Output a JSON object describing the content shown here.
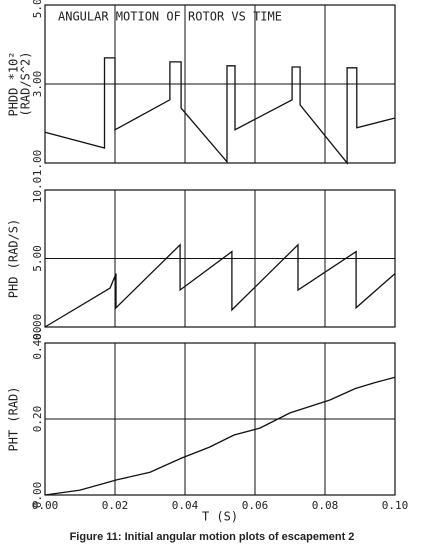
{
  "chart_data": [
    {
      "type": "line",
      "title": "ANGULAR MOTION OF ROTOR VS TIME",
      "ylabel": [
        "PHDD *10²",
        "(RAD/S^2)"
      ],
      "color": "#111",
      "x": [
        0,
        0.017,
        0.017,
        0.02,
        0.02,
        0.0357,
        0.0357,
        0.0389,
        0.0389,
        0.052,
        0.052,
        0.0543,
        0.0543,
        0.0706,
        0.0706,
        0.0729,
        0.0729,
        0.0863,
        0.0863,
        0.0891,
        0.0891,
        0.1
      ],
      "values": [
        1.78,
        1.38,
        3.66,
        3.66,
        1.84,
        2.6,
        3.56,
        3.56,
        2.39,
        1.03,
        3.46,
        3.46,
        1.84,
        2.6,
        3.43,
        3.43,
        2.47,
        1.0,
        3.41,
        3.41,
        1.89,
        2.14
      ],
      "xlim": [
        0,
        0.1
      ],
      "xticks": [
        0,
        0.02,
        0.04,
        0.06,
        0.08,
        0.1
      ],
      "show_xtick_labels": false,
      "ylim": [
        1,
        5
      ],
      "yticks": [
        {
          "value": 1,
          "label": "1.00"
        },
        {
          "value": 3,
          "label": "3.00"
        },
        {
          "value": 5,
          "label": "5.00"
        }
      ],
      "grid": true
    },
    {
      "type": "line",
      "ylabel": [
        "PHD (RAD/S)"
      ],
      "color": "#111",
      "x": [
        0,
        0.0186,
        0.0203,
        0.0203,
        0.0386,
        0.0386,
        0.0534,
        0.0534,
        0.0723,
        0.0723,
        0.0889,
        0.0889,
        0.1
      ],
      "values": [
        0,
        2.85,
        3.9,
        1.4,
        6.0,
        2.7,
        5.5,
        1.25,
        6.0,
        2.7,
        5.5,
        1.4,
        3.9
      ],
      "xlim": [
        0,
        0.1
      ],
      "xticks": [
        0,
        0.02,
        0.04,
        0.06,
        0.08,
        0.1
      ],
      "show_xtick_labels": false,
      "ylim": [
        0,
        10
      ],
      "yticks": [
        {
          "value": 0,
          "label": "0.00"
        },
        {
          "value": 5,
          "label": "5.00"
        },
        {
          "value": 10,
          "label": "10.0"
        }
      ],
      "grid": true
    },
    {
      "type": "line",
      "ylabel": [
        "PHT (RAD)"
      ],
      "xlabel": "T (S)",
      "color": "#111",
      "x": [
        0,
        0.01,
        0.0206,
        0.03,
        0.039,
        0.047,
        0.054,
        0.0614,
        0.07,
        0.0814,
        0.0886,
        0.094,
        0.1
      ],
      "values": [
        0,
        0.013,
        0.04,
        0.06,
        0.097,
        0.126,
        0.158,
        0.176,
        0.216,
        0.25,
        0.28,
        0.295,
        0.31
      ],
      "xlim": [
        0,
        0.1
      ],
      "xticks": [
        {
          "value": 0,
          "label": "0.00"
        },
        {
          "value": 0.02,
          "label": "0.02"
        },
        {
          "value": 0.04,
          "label": "0.04"
        },
        {
          "value": 0.06,
          "label": "0.06"
        },
        {
          "value": 0.08,
          "label": "0.08"
        },
        {
          "value": 0.1,
          "label": "0.10"
        }
      ],
      "show_xtick_labels": true,
      "ylim": [
        0,
        0.4
      ],
      "yticks": [
        {
          "value": 0,
          "label": "0.00"
        },
        {
          "value": 0.2,
          "label": "0.20"
        },
        {
          "value": 0.4,
          "label": "0.400"
        }
      ],
      "grid": true
    }
  ],
  "caption": "Figure 11: Initial angular motion plots of escapement 2"
}
